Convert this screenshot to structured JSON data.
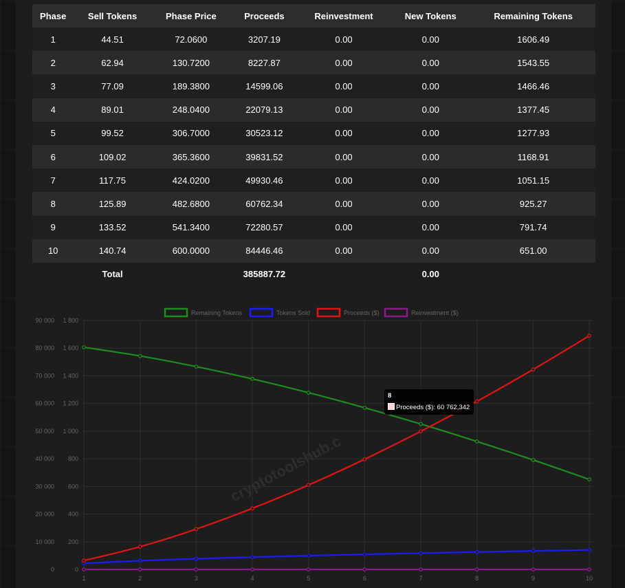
{
  "table": {
    "headers": [
      "Phase",
      "Sell Tokens",
      "Phase Price",
      "Proceeds",
      "Reinvestment",
      "New Tokens",
      "Remaining Tokens"
    ],
    "rows": [
      [
        "1",
        "44.51",
        "72.0600",
        "3207.19",
        "0.00",
        "0.00",
        "1606.49"
      ],
      [
        "2",
        "62.94",
        "130.7200",
        "8227.87",
        "0.00",
        "0.00",
        "1543.55"
      ],
      [
        "3",
        "77.09",
        "189.3800",
        "14599.06",
        "0.00",
        "0.00",
        "1466.46"
      ],
      [
        "4",
        "89.01",
        "248.0400",
        "22079.13",
        "0.00",
        "0.00",
        "1377.45"
      ],
      [
        "5",
        "99.52",
        "306.7000",
        "30523.12",
        "0.00",
        "0.00",
        "1277.93"
      ],
      [
        "6",
        "109.02",
        "365.3600",
        "39831.52",
        "0.00",
        "0.00",
        "1168.91"
      ],
      [
        "7",
        "117.75",
        "424.0200",
        "49930.46",
        "0.00",
        "0.00",
        "1051.15"
      ],
      [
        "8",
        "125.89",
        "482.6800",
        "60762.34",
        "0.00",
        "0.00",
        "925.27"
      ],
      [
        "9",
        "133.52",
        "541.3400",
        "72280.57",
        "0.00",
        "0.00",
        "791.74"
      ],
      [
        "10",
        "140.74",
        "600.0000",
        "84446.46",
        "0.00",
        "0.00",
        "651.00"
      ]
    ],
    "total_label": "Total",
    "total_proceeds": "385887.72",
    "total_new_tokens": "0.00"
  },
  "chart_data": {
    "type": "line",
    "categories": [
      "1",
      "2",
      "3",
      "4",
      "5",
      "6",
      "7",
      "8",
      "9",
      "10"
    ],
    "y_left": {
      "ticks": [
        0,
        10000,
        20000,
        30000,
        40000,
        50000,
        60000,
        70000,
        80000,
        90000
      ],
      "tick_labels": [
        "0",
        "10 000",
        "20 000",
        "30 000",
        "40 000",
        "50 000",
        "60 000",
        "70 000",
        "80 000",
        "90 000"
      ],
      "ylim": [
        0,
        90000
      ]
    },
    "y_right": {
      "ticks": [
        0,
        200,
        400,
        600,
        800,
        1000,
        1200,
        1400,
        1600,
        1800
      ],
      "tick_labels": [
        "0",
        "200",
        "400",
        "600",
        "800",
        "1 000",
        "1 200",
        "1 400",
        "1 600",
        "1 800"
      ],
      "ylim": [
        0,
        1800
      ]
    },
    "legend_position": "top",
    "grid": true,
    "series": [
      {
        "name": "Remaining Tokens",
        "color": "#1e8c1e",
        "axis": "right",
        "values": [
          1606.49,
          1543.55,
          1466.46,
          1377.45,
          1277.93,
          1168.91,
          1051.15,
          925.27,
          791.74,
          651.0
        ]
      },
      {
        "name": "Tokens Sold",
        "color": "#1a1aff",
        "axis": "right",
        "values": [
          44.51,
          62.94,
          77.09,
          89.01,
          99.52,
          109.02,
          117.75,
          125.89,
          133.52,
          140.74
        ]
      },
      {
        "name": "Proceeds ($)",
        "color": "#e01414",
        "axis": "left",
        "values": [
          3207.19,
          8227.87,
          14599.06,
          22079.13,
          30523.12,
          39831.52,
          49930.46,
          60762.34,
          72280.57,
          84446.46
        ]
      },
      {
        "name": "Reinvestment ($)",
        "color": "#8a1a8a",
        "axis": "left",
        "values": [
          0,
          0,
          0,
          0,
          0,
          0,
          0,
          0,
          0,
          0
        ]
      }
    ],
    "watermark": "cryptotoolshub.c",
    "tooltip": {
      "title": "8",
      "label": "Proceeds ($): 60 762,342"
    }
  }
}
